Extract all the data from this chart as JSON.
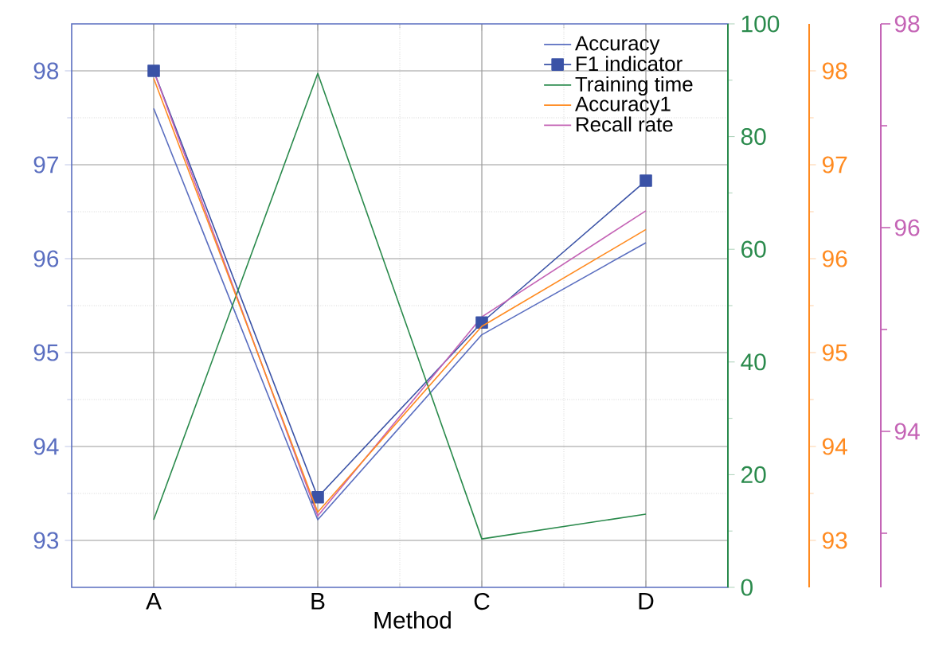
{
  "chart_data": {
    "type": "line",
    "xlabel": "Method",
    "categories": [
      "A",
      "B",
      "C",
      "D"
    ],
    "ylim": [
      92.5,
      98.5
    ],
    "yticks": [
      93,
      94,
      95,
      96,
      97,
      98
    ],
    "y2lim": [
      0,
      100
    ],
    "y2ticks": [
      0,
      20,
      40,
      60,
      80,
      100
    ],
    "y3lim": [
      92.5,
      98.5
    ],
    "y3ticks": [
      93,
      94,
      95,
      96,
      97,
      98
    ],
    "annotations": [
      "98",
      "96",
      "94"
    ],
    "grid": true,
    "legend": "top right",
    "series": [
      {
        "name": "Accuracy",
        "color": "#5a6ec0",
        "values": [
          97.6,
          93.22,
          95.19,
          96.17
        ]
      },
      {
        "name": "F1 indicator",
        "color": "#3a52a6",
        "marker": "square",
        "values": [
          98.0,
          93.46,
          95.32,
          96.83
        ]
      },
      {
        "name": "Training time",
        "color": "#2a8a4c",
        "axis": "y2",
        "values": [
          12,
          91.2,
          8.6,
          13.0
        ]
      },
      {
        "name": "Accuracy1",
        "color": "#ff8a1f",
        "axis": "y3",
        "values": [
          97.92,
          93.3,
          95.28,
          96.31
        ]
      },
      {
        "name": "Recall rate",
        "color": "#c463b5",
        "values": [
          98.0,
          93.26,
          95.38,
          96.51
        ]
      }
    ]
  }
}
